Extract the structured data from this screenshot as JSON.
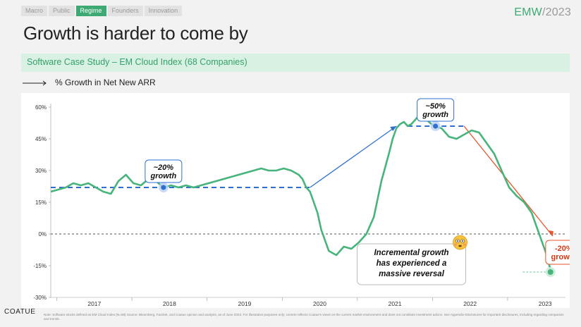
{
  "nav": {
    "tabs": [
      "Macro",
      "Public",
      "Regime",
      "Founders",
      "Innovation"
    ],
    "active_index": 2
  },
  "brand": {
    "name": "EMW",
    "year": "/2023"
  },
  "title": "Growth is harder to come by",
  "banner": "Software Case Study – EM Cloud Index (68 Companies)",
  "subtitle": "% Growth in Net New ARR",
  "footer": {
    "logo": "COATUE",
    "note": "Note: Software stocks defined as EM Cloud Index (N=68) Source: Bloomberg, FactSet, and Coatue opinion and analysis, as of June 2023. For illustrative purposes only; content reflects Coatue's views on the current market environment and does not constitute investment advice. See Appendix-Disclosures for important disclosures, including regarding companies and trends."
  },
  "colors": {
    "accent": "#3daa73",
    "line": "#46b47b",
    "blue": "#2f6fd0",
    "red": "#e8542b"
  },
  "chart_data": {
    "type": "line",
    "ylim": [
      -30,
      60
    ],
    "y_ticks": [
      "60%",
      "45%",
      "30%",
      "15%",
      "0%",
      "-15%",
      "-30%"
    ],
    "x_labels": [
      "2017",
      "2018",
      "2019",
      "2020",
      "2021",
      "2022",
      "2023"
    ],
    "xlim": [
      2016.5,
      2023.35
    ],
    "grid": false,
    "series": [
      {
        "x": [
          2016.5,
          2016.6,
          2016.7,
          2016.75,
          2016.8,
          2016.9,
          2017.0,
          2017.1,
          2017.2,
          2017.3,
          2017.4,
          2017.5,
          2017.6,
          2017.7,
          2017.8,
          2017.9,
          2018.0,
          2018.1,
          2018.2,
          2018.3,
          2018.4,
          2018.5,
          2018.6,
          2018.7,
          2018.8,
          2018.9,
          2019.0,
          2019.1,
          2019.2,
          2019.3,
          2019.4,
          2019.5,
          2019.6,
          2019.7,
          2019.75,
          2019.8,
          2019.85,
          2019.9,
          2019.95,
          2020.0,
          2020.05,
          2020.1,
          2020.2,
          2020.3,
          2020.4,
          2020.5,
          2020.6,
          2020.7,
          2020.8,
          2020.9,
          2021.0,
          2021.05,
          2021.1,
          2021.15,
          2021.2,
          2021.25,
          2021.3,
          2021.35,
          2021.4,
          2021.5,
          2021.6,
          2021.7,
          2021.8,
          2021.9,
          2022.0,
          2022.1,
          2022.2,
          2022.3,
          2022.4,
          2022.5,
          2022.6,
          2022.7,
          2022.8,
          2022.9,
          2023.0,
          2023.1,
          2023.15
        ],
        "y": [
          20,
          21,
          22,
          23,
          24,
          23,
          24,
          22,
          20,
          19,
          25,
          28,
          24,
          23,
          26,
          25,
          22,
          23,
          22,
          23,
          22,
          23,
          24,
          25,
          26,
          27,
          28,
          29,
          30,
          31,
          30,
          30,
          31,
          30,
          29,
          28,
          26,
          22,
          20,
          15,
          10,
          2,
          -8,
          -10,
          -6,
          -7,
          -4,
          0,
          8,
          25,
          38,
          45,
          50,
          52,
          53,
          51,
          52,
          54,
          56,
          54,
          51,
          50,
          46,
          45,
          47,
          49,
          48,
          43,
          38,
          30,
          22,
          18,
          15,
          10,
          0,
          -10,
          -17
        ],
        "name": ""
      }
    ],
    "annotations": [
      {
        "text1": "~20%",
        "text2": "growth"
      },
      {
        "text1": "~50%",
        "text2": "growth"
      },
      {
        "text1": "-20%",
        "text2": "growth"
      },
      {
        "text1": "Incremental growth",
        "text2": "has experienced a",
        "text3": "massive reversal"
      }
    ]
  }
}
